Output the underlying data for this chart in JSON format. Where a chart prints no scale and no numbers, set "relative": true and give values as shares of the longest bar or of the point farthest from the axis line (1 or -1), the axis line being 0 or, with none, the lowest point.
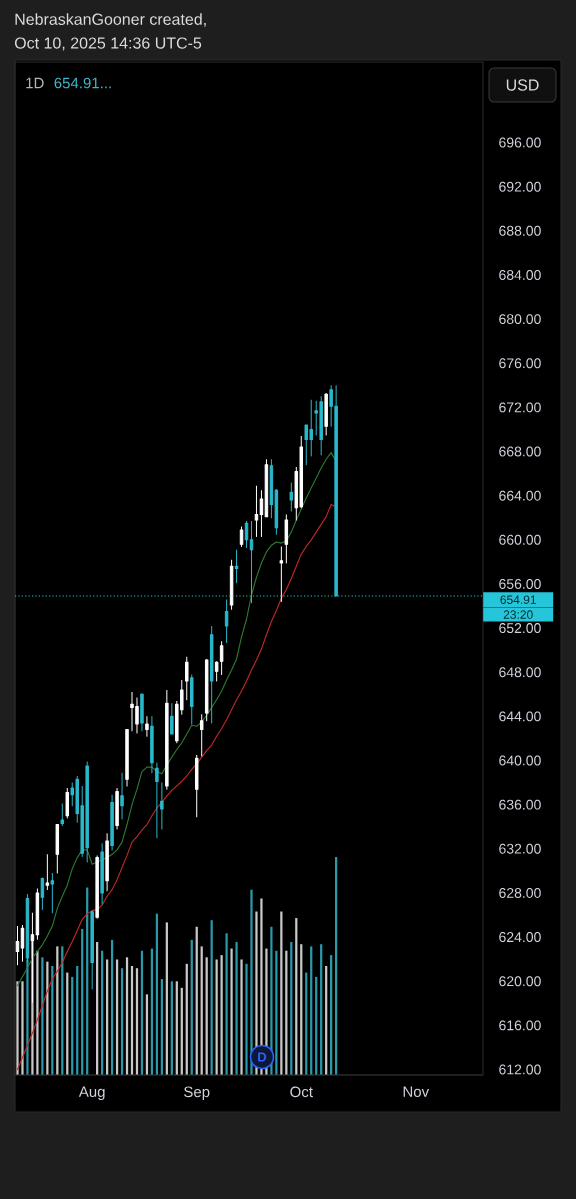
{
  "chart_data": [
    {
      "type": "candlestick",
      "title": "1D",
      "subtitle": "654.91...",
      "categories": [
        null,
        null,
        null,
        null,
        null,
        null,
        null,
        null,
        null,
        null,
        null,
        null,
        null,
        null,
        null,
        "Aug",
        null,
        null,
        null,
        null,
        null,
        null,
        null,
        null,
        null,
        null,
        null,
        null,
        null,
        null,
        null,
        null,
        null,
        null,
        null,
        null,
        "Sep",
        null,
        null,
        null,
        null,
        null,
        null,
        null,
        null,
        null,
        null,
        null,
        null,
        null,
        null,
        null,
        null,
        null,
        null,
        null,
        null,
        "Oct",
        null,
        null,
        null,
        null,
        null,
        null,
        null,
        null,
        null,
        null,
        null,
        null,
        null,
        null,
        null,
        null,
        null,
        null,
        null,
        null,
        null,
        null,
        "Nov",
        null,
        null,
        null,
        null,
        null,
        null,
        null,
        null,
        null,
        null,
        null,
        null,
        null
      ],
      "ohlc": [
        [
          622.7,
          625.0,
          621.5,
          623.6
        ],
        [
          623.0,
          625.1,
          621.8,
          624.8
        ],
        [
          627.5,
          627.9,
          621.7,
          622.1
        ],
        [
          623.7,
          626.2,
          618.1,
          624.2
        ],
        [
          624.2,
          628.4,
          623.8,
          628.0
        ],
        [
          629.3,
          629.4,
          626.5,
          627.6
        ],
        [
          628.7,
          631.5,
          628.3,
          628.9
        ],
        [
          629.1,
          629.8,
          626.2,
          628.8
        ],
        [
          631.5,
          634.2,
          629.8,
          634.2
        ],
        [
          634.6,
          636.1,
          634.1,
          634.3
        ],
        [
          635.0,
          637.5,
          634.8,
          637.1
        ],
        [
          637.5,
          638.0,
          635.9,
          636.9
        ],
        [
          638.3,
          638.6,
          634.4,
          635.2
        ],
        [
          635.9,
          637.7,
          631.3,
          631.6
        ],
        [
          639.5,
          639.9,
          630.8,
          632.1
        ],
        [
          626.3,
          626.4,
          619.3,
          621.7
        ],
        [
          625.8,
          631.4,
          625.7,
          631.2
        ],
        [
          631.7,
          632.5,
          627.0,
          628.0
        ],
        [
          629.1,
          633.4,
          628.2,
          632.7
        ],
        [
          636.2,
          636.9,
          631.9,
          632.3
        ],
        [
          634.1,
          637.5,
          633.8,
          637.2
        ],
        [
          636.8,
          638.9,
          634.7,
          635.9
        ],
        [
          638.3,
          642.8,
          637.7,
          642.8
        ],
        [
          644.8,
          646.2,
          642.7,
          645.1
        ],
        [
          643.3,
          645.7,
          642.5,
          644.9
        ],
        [
          646.0,
          646.1,
          642.7,
          643.4
        ],
        [
          642.8,
          644.0,
          642.2,
          643.3
        ],
        [
          643.1,
          644.0,
          638.9,
          639.8
        ],
        [
          639.3,
          639.8,
          633.0,
          638.1
        ],
        [
          636.3,
          638.0,
          633.8,
          635.6
        ],
        [
          637.7,
          646.4,
          637.4,
          645.2
        ],
        [
          644.0,
          645.2,
          642.4,
          642.4
        ],
        [
          641.8,
          645.4,
          641.6,
          645.1
        ],
        [
          644.6,
          647.3,
          644.2,
          646.4
        ],
        [
          647.2,
          649.4,
          645.5,
          648.9
        ],
        [
          647.5,
          647.8,
          643.3,
          644.9
        ],
        [
          637.4,
          640.5,
          634.9,
          640.2
        ],
        [
          642.8,
          644.2,
          640.4,
          643.6
        ],
        [
          644.3,
          649.2,
          643.6,
          649.1
        ],
        [
          651.4,
          652.2,
          643.4,
          647.2
        ],
        [
          648.1,
          649.0,
          647.2,
          648.9
        ],
        [
          649.0,
          650.8,
          647.8,
          650.4
        ],
        [
          653.5,
          654.6,
          650.7,
          652.2
        ],
        [
          654.1,
          658.2,
          653.7,
          657.6
        ],
        [
          657.6,
          659.1,
          656.1,
          657.4
        ],
        [
          659.6,
          661.2,
          659.4,
          660.9
        ],
        [
          661.5,
          661.7,
          659.3,
          660.0
        ],
        [
          660.0,
          661.7,
          654.3,
          659.1
        ],
        [
          661.8,
          664.9,
          660.3,
          662.3
        ],
        [
          662.3,
          664.5,
          660.3,
          663.7
        ],
        [
          662.1,
          667.3,
          662.1,
          666.8
        ],
        [
          666.7,
          667.3,
          662.0,
          663.2
        ],
        [
          664.5,
          664.6,
          660.5,
          661.1
        ],
        [
          657.9,
          659.4,
          654.4,
          658.1
        ],
        [
          659.6,
          662.3,
          657.9,
          661.8
        ],
        [
          664.3,
          665.2,
          662.6,
          663.6
        ],
        [
          662.9,
          666.6,
          661.8,
          666.2
        ],
        [
          663.0,
          669.4,
          662.9,
          668.4
        ],
        [
          670.4,
          670.4,
          666.8,
          669.1
        ],
        [
          670.0,
          672.7,
          667.6,
          669.1
        ],
        [
          671.7,
          672.6,
          669.5,
          671.5
        ],
        [
          672.5,
          673.0,
          667.7,
          669.1
        ],
        [
          670.3,
          673.3,
          669.5,
          673.2
        ],
        [
          673.6,
          674.0,
          670.3,
          672.1
        ],
        [
          672.1,
          674.0,
          654.91,
          654.91
        ],
        null,
        null,
        null,
        null,
        null,
        null,
        null,
        null,
        null,
        null,
        null,
        null,
        null,
        null,
        null,
        null,
        null,
        null,
        null,
        null,
        null,
        null,
        null,
        null,
        null,
        null,
        null,
        null,
        null
      ],
      "colors": [
        "#ffffff",
        "#ffffff",
        "#29b8cc",
        "#ffffff",
        "#ffffff",
        "#29b8cc",
        "#ffffff",
        "#29b8cc",
        "#ffffff",
        "#29b8cc",
        "#ffffff",
        "#29b8cc",
        "#29b8cc",
        "#29b8cc",
        "#29b8cc",
        "#29b8cc",
        "#ffffff",
        "#29b8cc",
        "#ffffff",
        "#29b8cc",
        "#ffffff",
        "#29b8cc",
        "#ffffff",
        "#ffffff",
        "#ffffff",
        "#29b8cc",
        "#ffffff",
        "#29b8cc",
        "#29b8cc",
        "#29b8cc",
        "#ffffff",
        "#29b8cc",
        "#ffffff",
        "#ffffff",
        "#ffffff",
        "#29b8cc",
        "#ffffff",
        "#ffffff",
        "#ffffff",
        "#29b8cc",
        "#ffffff",
        "#ffffff",
        "#29b8cc",
        "#ffffff",
        "#29b8cc",
        "#ffffff",
        "#29b8cc",
        "#29b8cc",
        "#ffffff",
        "#ffffff",
        "#ffffff",
        "#29b8cc",
        "#29b8cc",
        "#ffffff",
        "#ffffff",
        "#29b8cc",
        "#ffffff",
        "#ffffff",
        "#29b8cc",
        "#29b8cc",
        "#29b8cc",
        "#29b8cc",
        "#ffffff",
        "#29b8cc",
        "#29b8cc",
        null,
        null,
        null,
        null,
        null,
        null,
        null,
        null,
        null,
        null,
        null,
        null,
        null,
        null,
        null,
        null,
        null,
        null,
        null,
        null,
        null,
        null,
        null,
        null,
        null,
        null,
        null,
        null,
        null
      ],
      "series": [
        {
          "type": "line",
          "color": "#2e7d32",
          "values": [
            619.6,
            620.4,
            621.2,
            622.1,
            622.7,
            623.3,
            624.1,
            625.0,
            626.6,
            627.7,
            628.7,
            630.2,
            631.2,
            631.9,
            631.9,
            630.6,
            630.8,
            631.0,
            631.2,
            631.5,
            631.9,
            632.6,
            634.2,
            636.0,
            637.4,
            639.0,
            639.4,
            639.4,
            639.0,
            638.8,
            639.6,
            640.3,
            641.0,
            641.6,
            642.4,
            643.2,
            643.1,
            643.5,
            644.1,
            644.8,
            645.5,
            646.3,
            647.3,
            648.2,
            649.2,
            651.2,
            652.8,
            655.0,
            656.6,
            657.9,
            658.9,
            659.5,
            659.8,
            659.7,
            659.9,
            660.7,
            661.8,
            662.8,
            663.8,
            664.7,
            665.6,
            666.5,
            667.3,
            667.9,
            667.1,
            null,
            null,
            null,
            null,
            null,
            null,
            null,
            null,
            null,
            null,
            null,
            null,
            null,
            null,
            null,
            null,
            null,
            null,
            null,
            null,
            null,
            null,
            null,
            null,
            null,
            null,
            null,
            null,
            null
          ]
        },
        {
          "type": "line",
          "color": "#c62828",
          "values": [
            612.0,
            613.1,
            614.2,
            615.3,
            616.5,
            617.8,
            619.1,
            620.2,
            620.9,
            621.7,
            622.7,
            623.6,
            624.6,
            625.6,
            626.1,
            626.4,
            626.5,
            626.9,
            627.7,
            628.3,
            629.2,
            630.3,
            631.4,
            632.6,
            633.1,
            633.7,
            634.2,
            635.0,
            635.7,
            636.2,
            636.8,
            637.3,
            637.7,
            638.1,
            638.6,
            639.2,
            639.7,
            640.3,
            640.9,
            641.4,
            642.2,
            642.9,
            643.7,
            644.6,
            645.5,
            646.3,
            647.2,
            648.2,
            649.1,
            650.1,
            651.4,
            652.6,
            653.6,
            654.7,
            655.5,
            656.5,
            657.6,
            658.7,
            659.4,
            660.0,
            660.7,
            661.4,
            662.1,
            663.2,
            663.0,
            null,
            null,
            null,
            null,
            null,
            null,
            null,
            null,
            null,
            null,
            null,
            null,
            null,
            null,
            null,
            null,
            null,
            null,
            null,
            null,
            null,
            null,
            null,
            null,
            null,
            null,
            null,
            null,
            null
          ]
        }
      ],
      "ylim": [
        611.5,
        703.3
      ],
      "yticks": [
        {
          "value": 612,
          "label": "612.00"
        },
        {
          "value": 616,
          "label": "616.00"
        },
        {
          "value": 620,
          "label": "620.00"
        },
        {
          "value": 624,
          "label": "624.00"
        },
        {
          "value": 628,
          "label": "628.00"
        },
        {
          "value": 632,
          "label": "632.00"
        },
        {
          "value": 636,
          "label": "636.00"
        },
        {
          "value": 640,
          "label": "640.00"
        },
        {
          "value": 644,
          "label": "644.00"
        },
        {
          "value": 648,
          "label": "648.00"
        },
        {
          "value": 652,
          "label": "652.00"
        },
        {
          "value": 656,
          "label": "656.00"
        },
        {
          "value": 660,
          "label": "660.00"
        },
        {
          "value": 664,
          "label": "664.00"
        },
        {
          "value": 668,
          "label": "668.00"
        },
        {
          "value": 672,
          "label": "672.00"
        },
        {
          "value": 676,
          "label": "676.00"
        },
        {
          "value": 680,
          "label": "680.00"
        },
        {
          "value": 684,
          "label": "684.00"
        },
        {
          "value": 688,
          "label": "688.00"
        },
        {
          "value": 692,
          "label": "692.00"
        },
        {
          "value": 696,
          "label": "696.00"
        }
      ],
      "ref_lines": [
        {
          "axis": "y",
          "value": 654.91,
          "label": "654.91",
          "color": "#26c6da",
          "line_style": "dotted"
        }
      ],
      "annotations": [
        "NebraskanGooner created,",
        "Oct 10, 2025 14:36 UTC-5",
        "USD",
        "23:20",
        "D"
      ]
    },
    {
      "type": "bar",
      "relative": true,
      "categories": [
        null,
        null,
        null,
        null,
        null,
        null,
        null,
        null,
        null,
        null,
        null,
        null,
        null,
        null,
        null,
        null,
        null,
        null,
        null,
        null,
        null,
        null,
        null,
        null,
        null,
        null,
        null,
        null,
        null,
        null,
        null,
        null,
        null,
        null,
        null,
        null,
        null,
        null,
        null,
        null,
        null,
        null,
        null,
        null,
        null,
        null,
        null,
        null,
        null,
        null,
        null,
        null,
        null,
        null,
        null,
        null,
        null,
        null,
        null,
        null,
        null,
        null,
        null,
        null,
        null,
        null,
        null,
        null,
        null,
        null,
        null,
        null,
        null,
        null,
        null,
        null,
        null,
        null,
        null,
        null,
        null,
        null,
        null,
        null,
        null,
        null,
        null,
        null,
        null,
        null,
        null,
        null,
        null,
        null
      ],
      "values": [
        0.43,
        0.43,
        0.53,
        0.62,
        0.57,
        0.54,
        0.52,
        0.5,
        0.59,
        0.59,
        0.47,
        0.45,
        0.5,
        0.67,
        0.86,
        null,
        0.61,
        0.57,
        0.53,
        0.62,
        0.53,
        0.49,
        0.54,
        0.5,
        0.49,
        0.57,
        0.37,
        0.58,
        0.74,
        0.44,
        0.7,
        0.43,
        0.43,
        0.4,
        0.51,
        0.62,
        0.68,
        0.59,
        0.54,
        0.71,
        0.53,
        0.55,
        0.65,
        0.58,
        0.61,
        0.53,
        0.51,
        0.85,
        0.75,
        0.81,
        0.58,
        0.68,
        0.57,
        0.75,
        0.57,
        0.61,
        0.72,
        0.6,
        0.47,
        0.59,
        0.45,
        0.6,
        0.5,
        0.55,
        1,
        null,
        null,
        null,
        null,
        null,
        null,
        null,
        null,
        null,
        null,
        null,
        null,
        null,
        null,
        null,
        null,
        null,
        null,
        null,
        null,
        null,
        null,
        null,
        null,
        null,
        null,
        null,
        null,
        null
      ],
      "colors": [
        "#c9c9c9",
        "#c9c9c9",
        "#2a9aaa",
        "#c9c9c9",
        "#c9c9c9",
        "#2a9aaa",
        "#c9c9c9",
        "#2a9aaa",
        "#c9c9c9",
        "#2a9aaa",
        "#c9c9c9",
        "#2a9aaa",
        "#2a9aaa",
        "#2a9aaa",
        "#2a9aaa",
        "#2a9aaa",
        "#c9c9c9",
        "#2a9aaa",
        "#c9c9c9",
        "#2a9aaa",
        "#c9c9c9",
        "#2a9aaa",
        "#c9c9c9",
        "#c9c9c9",
        "#c9c9c9",
        "#2a9aaa",
        "#c9c9c9",
        "#2a9aaa",
        "#2a9aaa",
        "#2a9aaa",
        "#c9c9c9",
        "#2a9aaa",
        "#c9c9c9",
        "#c9c9c9",
        "#c9c9c9",
        "#2a9aaa",
        "#c9c9c9",
        "#c9c9c9",
        "#c9c9c9",
        "#2a9aaa",
        "#c9c9c9",
        "#c9c9c9",
        "#2a9aaa",
        "#c9c9c9",
        "#2a9aaa",
        "#c9c9c9",
        "#2a9aaa",
        "#2a9aaa",
        "#c9c9c9",
        "#c9c9c9",
        "#c9c9c9",
        "#2a9aaa",
        "#2a9aaa",
        "#c9c9c9",
        "#c9c9c9",
        "#2a9aaa",
        "#c9c9c9",
        "#c9c9c9",
        "#2a9aaa",
        "#2a9aaa",
        "#2a9aaa",
        "#2a9aaa",
        "#c9c9c9",
        "#2a9aaa",
        "#2a9aaa",
        null,
        null,
        null,
        null,
        null,
        null,
        null,
        null,
        null,
        null,
        null,
        null,
        null,
        null,
        null,
        null,
        null,
        null,
        null,
        null,
        null,
        null,
        null,
        null,
        null,
        null,
        null,
        null,
        null
      ]
    }
  ]
}
